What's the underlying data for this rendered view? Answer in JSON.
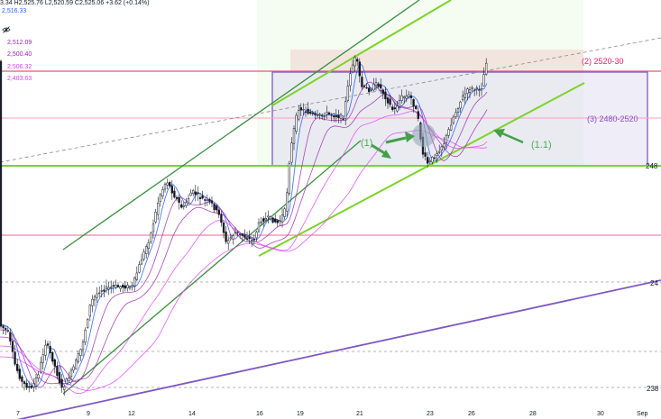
{
  "header": {
    "ohlc_text": "3.34  H2,525.76  L2,520.59  C2,525.06  +3.62 (+0.14%)",
    "indicators": [
      {
        "value": "2,516.33",
        "color": "#2962ff"
      },
      {
        "value": "2,512.09",
        "color": "#9c27b0"
      },
      {
        "value": "2,500.40",
        "color": "#9c27b0"
      },
      {
        "value": "2,506.32",
        "color": "#e040fb"
      },
      {
        "value": "2,483.63",
        "color": "#e040fb"
      }
    ],
    "visibility_icon": "eye-crossed-icon"
  },
  "x_axis": {
    "labels": [
      "7",
      "9",
      "12",
      "14",
      "16",
      "19",
      "21",
      "23",
      "26",
      "28",
      "30",
      "Sep"
    ]
  },
  "price_scale": {
    "labels": [
      "248",
      "24",
      "238"
    ]
  },
  "annotations": {
    "zone_2": "(2) 2520-30",
    "zone_3": "(3) 2480-2520",
    "label_1": "(1)",
    "label_1_1": "(1.1)"
  },
  "colors": {
    "up_candle": "#131722",
    "channel_green": "#388e3c",
    "channel_lime": "#7cd32b",
    "trend_purple": "#7e57c2",
    "zone_red": "#f28b9b",
    "zone_purple": "#9575cd",
    "zone_label_red": "#e91e63",
    "zone_label_purple": "#7e57c2",
    "arrow_green": "#43a047"
  }
}
